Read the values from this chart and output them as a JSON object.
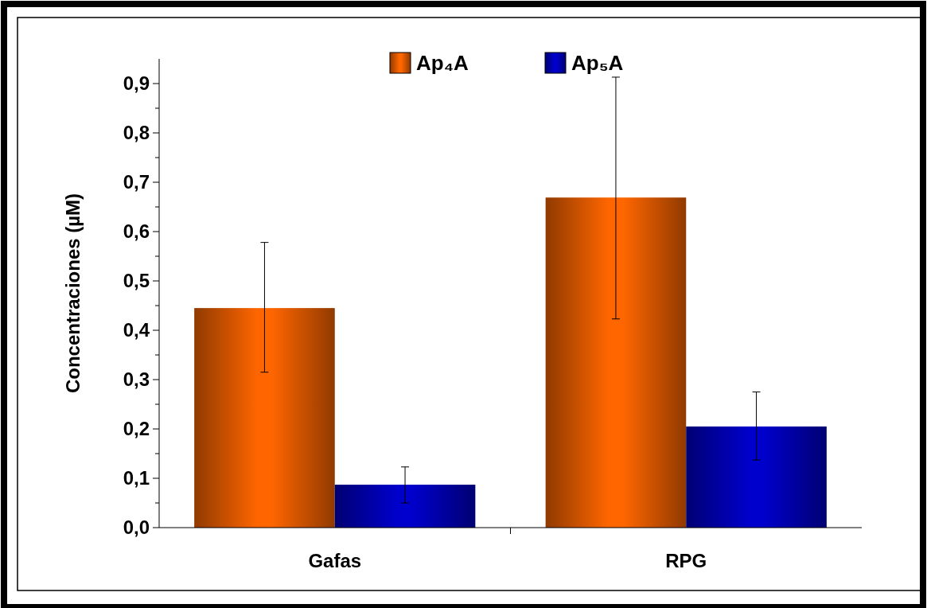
{
  "chart_data": {
    "type": "bar",
    "ylabel": "Concentraciones (µM)",
    "categories": [
      "Gafas",
      "RPG"
    ],
    "series": [
      {
        "name": "Ap₄A",
        "color": "#ff6600",
        "values": [
          0.445,
          0.669
        ],
        "errors": [
          [
            0.315,
            0.578
          ],
          [
            0.423,
            0.913
          ]
        ]
      },
      {
        "name": "Ap₅A",
        "color": "#0000cc",
        "values": [
          0.087,
          0.205
        ],
        "errors": [
          [
            0.05,
            0.123
          ],
          [
            0.137,
            0.275
          ]
        ]
      }
    ],
    "ylim": [
      0,
      0.95
    ],
    "yticks": [
      {
        "value": 0,
        "label": "0,0"
      },
      {
        "value": 0.05,
        "label": null
      },
      {
        "value": 0.1,
        "label": "0,1"
      },
      {
        "value": 0.15,
        "label": null
      },
      {
        "value": 0.2,
        "label": "0,2"
      },
      {
        "value": 0.25,
        "label": null
      },
      {
        "value": 0.3,
        "label": "0,3"
      },
      {
        "value": 0.35,
        "label": null
      },
      {
        "value": 0.4,
        "label": "0,4"
      },
      {
        "value": 0.45,
        "label": null
      },
      {
        "value": 0.5,
        "label": "0,5"
      },
      {
        "value": 0.55,
        "label": null
      },
      {
        "value": 0.6,
        "label": "0,6"
      },
      {
        "value": 0.65,
        "label": null
      },
      {
        "value": 0.7,
        "label": "0,7"
      },
      {
        "value": 0.75,
        "label": null
      },
      {
        "value": 0.8,
        "label": "0,8"
      },
      {
        "value": 0.85,
        "label": null
      },
      {
        "value": 0.9,
        "label": "0,9"
      }
    ],
    "grid": false,
    "legend": "top"
  }
}
